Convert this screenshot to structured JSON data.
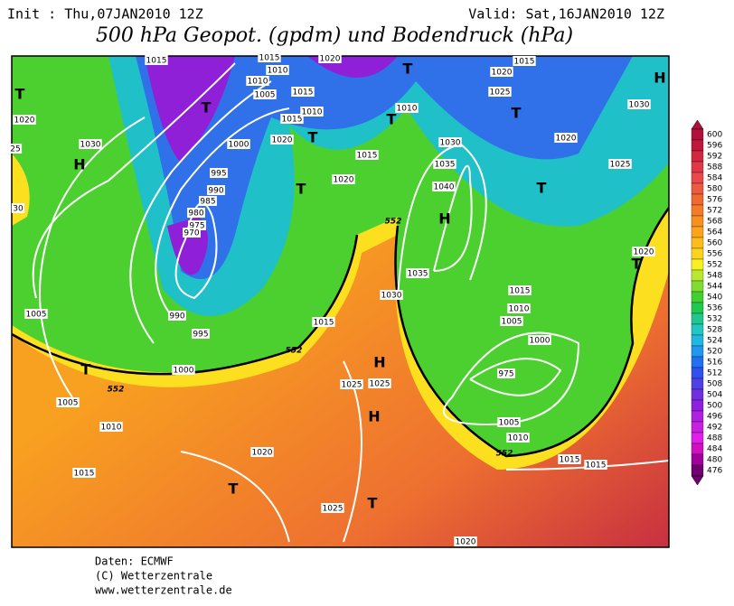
{
  "header": {
    "init": "Init : Thu,07JAN2010 12Z",
    "valid": "Valid: Sat,16JAN2010 12Z",
    "title": "500 hPa Geopot. (gpdm) und Bodendruck (hPa)"
  },
  "colorbar": {
    "levels": [
      600,
      596,
      592,
      588,
      584,
      580,
      576,
      572,
      568,
      564,
      560,
      556,
      552,
      548,
      544,
      540,
      536,
      532,
      528,
      524,
      520,
      516,
      512,
      508,
      504,
      500,
      496,
      492,
      488,
      484,
      480,
      476
    ],
    "colors": [
      "#b0103a",
      "#c0183c",
      "#d02840",
      "#e03848",
      "#e84a4a",
      "#ec5a40",
      "#f06a30",
      "#f47c28",
      "#f89020",
      "#fca41c",
      "#fcbc1c",
      "#fcd420",
      "#f8f020",
      "#b8e830",
      "#80dc30",
      "#40d030",
      "#20c850",
      "#20c890",
      "#20c8c0",
      "#20b8e0",
      "#2098f0",
      "#2070f0",
      "#3050f0",
      "#5040e8",
      "#7030e0",
      "#9020e0",
      "#b020e0",
      "#c820e0",
      "#e020e8",
      "#d010c0",
      "#a000a0",
      "#700070"
    ]
  },
  "pressure_labels": [
    "1015",
    "1015",
    "1010",
    "1010",
    "1005",
    "1015",
    "1015",
    "1010",
    "1020",
    "1000",
    "995",
    "990",
    "985",
    "980",
    "975",
    "970",
    "990",
    "995",
    "1000",
    "1005",
    "1005",
    "1010",
    "1015",
    "1020",
    "1025",
    "1025",
    "1025",
    "1015",
    "1020",
    "1015",
    "1010",
    "1030",
    "1035",
    "1040",
    "1035",
    "1030",
    "1015",
    "1010",
    "1005",
    "1000",
    "975",
    "1005",
    "1010",
    "1015",
    "1015",
    "1020",
    "1020",
    "1025",
    "1015",
    "1030",
    "1020",
    "1025",
    "1020",
    "1020",
    "1020",
    "1030",
    "25",
    "30"
  ],
  "centers": [
    "T",
    "H",
    "T",
    "T",
    "T",
    "T",
    "T",
    "T",
    "T",
    "H",
    "H",
    "H",
    "H",
    "T",
    "T",
    "T",
    "T"
  ],
  "contour_labels": [
    "552",
    "552",
    "552",
    "552"
  ],
  "footer": [
    "Daten: ECMWF",
    "(C) Wetterzentrale",
    "www.wetterzentrale.de"
  ]
}
